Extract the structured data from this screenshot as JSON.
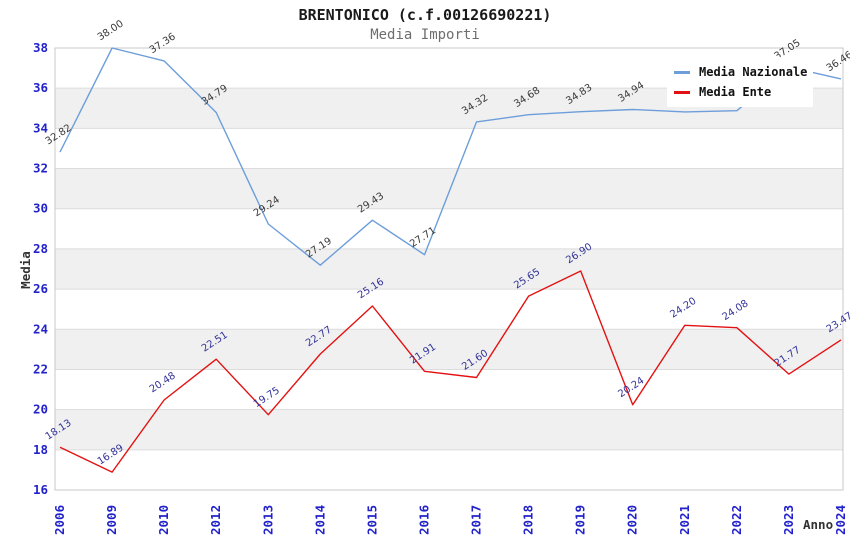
{
  "header": {
    "title": "BRENTONICO (c.f.00126690221)",
    "subtitle": "Media Importi"
  },
  "legend": {
    "items": [
      {
        "label": "Media Nazionale",
        "color": "#6d9eda"
      },
      {
        "label": "Media Ente",
        "color": "#e31212"
      }
    ]
  },
  "chart_data": {
    "type": "line",
    "title": "BRENTONICO (c.f.00126690221)",
    "subtitle": "Media Importi",
    "xlabel": "Anno",
    "ylabel": "Media",
    "ylim": [
      16,
      38
    ],
    "yticks": [
      16,
      18,
      20,
      22,
      24,
      26,
      28,
      30,
      32,
      34,
      36,
      38
    ],
    "grid": "horizontal-stripes",
    "legend_position": "top-right-inside",
    "categories": [
      "2006",
      "2009",
      "2010",
      "2012",
      "2013",
      "2014",
      "2015",
      "2016",
      "2017",
      "2018",
      "2019",
      "2020",
      "2021",
      "2022",
      "2023",
      "2024"
    ],
    "series": [
      {
        "name": "Media Nazionale",
        "color": "#6d9eda",
        "label_color": "#3a3a3a",
        "values": [
          32.82,
          38.0,
          37.36,
          34.79,
          29.24,
          27.19,
          29.43,
          27.71,
          34.32,
          34.68,
          34.83,
          34.94,
          34.82,
          34.88,
          37.05,
          36.46
        ]
      },
      {
        "name": "Media Ente",
        "color": "#e31212",
        "label_color": "#333399",
        "values": [
          18.13,
          16.89,
          20.48,
          22.51,
          19.75,
          22.77,
          25.16,
          21.91,
          21.6,
          25.65,
          26.9,
          20.24,
          24.2,
          24.08,
          21.77,
          23.47
        ]
      }
    ],
    "colors": {
      "tick_label": "#2222cc",
      "axis_title": "#333333",
      "stripe": "#f0f0f0",
      "gridline": "#dcdcdc",
      "plot_border": "#c8c8c8",
      "title": "#1a1a1a",
      "subtitle": "#6e6e6e"
    }
  }
}
